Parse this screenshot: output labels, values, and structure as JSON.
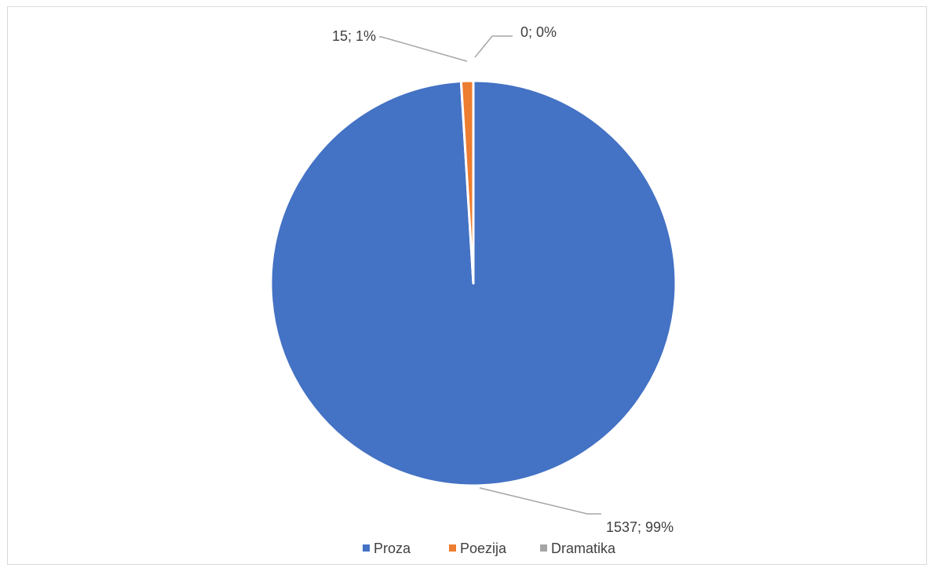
{
  "chart_data": {
    "type": "pie",
    "title": "",
    "categories": [
      "Proza",
      "Poezija",
      "Dramatika"
    ],
    "values": [
      1537,
      15,
      0
    ],
    "percent_labels": [
      "1537; 99%",
      "15; 1%",
      "0; 0%"
    ],
    "colors": [
      "#4472C4",
      "#ED7D31",
      "#A5A5A5"
    ],
    "legend_position": "bottom",
    "start_angle": "12 o'clock, clockwise"
  }
}
